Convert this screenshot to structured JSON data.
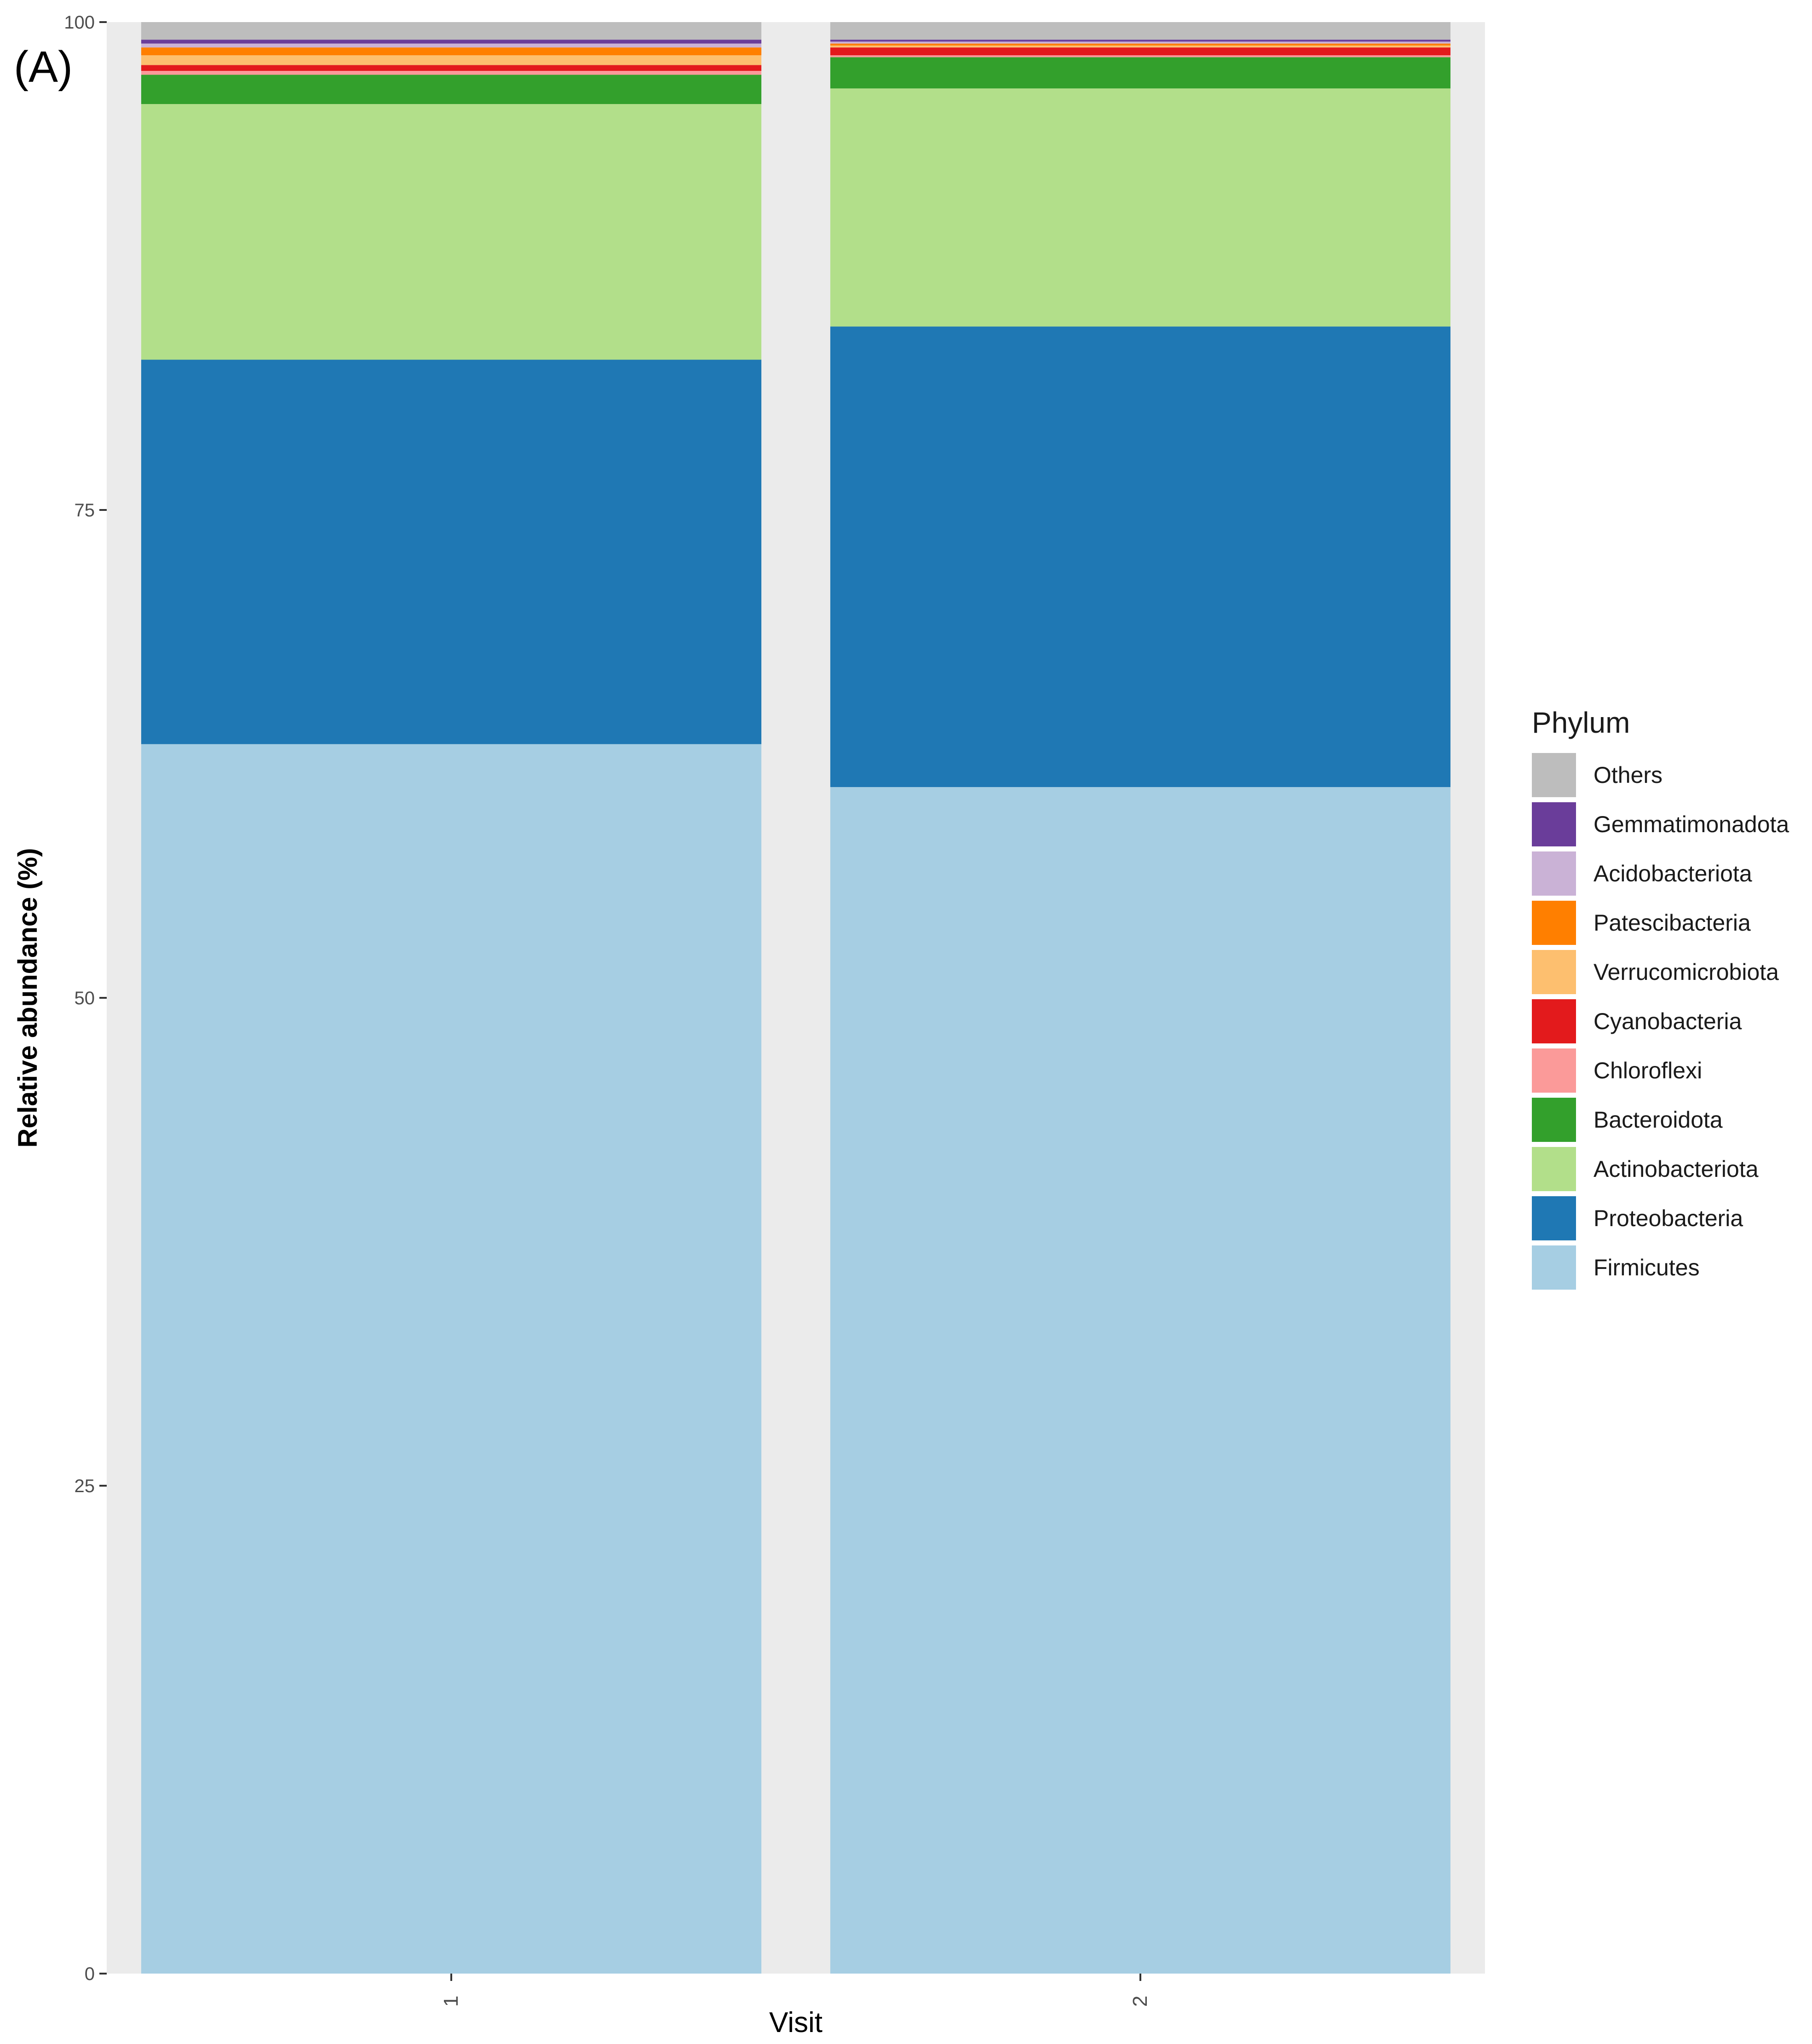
{
  "panel_label": "(A)",
  "chart_data": {
    "type": "bar",
    "stacked": true,
    "title": "",
    "xlabel": "Visit",
    "ylabel": "Relative abundance (%)",
    "ylim": [
      0,
      100
    ],
    "yticks": [
      0,
      25,
      50,
      75,
      100
    ],
    "categories": [
      "1",
      "2"
    ],
    "legend_title": "Phylum",
    "legend_position": "right",
    "series": [
      {
        "name": "Firmicutes",
        "color": "#a6cee3",
        "values": [
          63.0,
          60.8
        ]
      },
      {
        "name": "Proteobacteria",
        "color": "#1f78b4",
        "values": [
          19.7,
          23.6
        ]
      },
      {
        "name": "Actinobacteriota",
        "color": "#b2df8a",
        "values": [
          13.1,
          12.2
        ]
      },
      {
        "name": "Bacteroidota",
        "color": "#33a02c",
        "values": [
          1.5,
          1.6
        ]
      },
      {
        "name": "Chloroflexi",
        "color": "#fb9a99",
        "values": [
          0.2,
          0.1
        ]
      },
      {
        "name": "Cyanobacteria",
        "color": "#e31a1c",
        "values": [
          0.3,
          0.4
        ]
      },
      {
        "name": "Verrucomicrobiota",
        "color": "#fdbf6f",
        "values": [
          0.5,
          0.1
        ]
      },
      {
        "name": "Patescibacteria",
        "color": "#ff7f00",
        "values": [
          0.4,
          0.1
        ]
      },
      {
        "name": "Acidobacteriota",
        "color": "#cab2d6",
        "values": [
          0.2,
          0.1
        ]
      },
      {
        "name": "Gemmatimonadota",
        "color": "#6a3d9a",
        "values": [
          0.2,
          0.1
        ]
      },
      {
        "name": "Others",
        "color": "#bdbdbd",
        "values": [
          0.9,
          0.9
        ]
      }
    ],
    "legend_order": [
      "Others",
      "Gemmatimonadota",
      "Acidobacteriota",
      "Patescibacteria",
      "Verrucomicrobiota",
      "Cyanobacteria",
      "Chloroflexi",
      "Bacteroidota",
      "Actinobacteriota",
      "Proteobacteria",
      "Firmicutes"
    ],
    "grid": false,
    "panel_background": "#ebebeb"
  }
}
